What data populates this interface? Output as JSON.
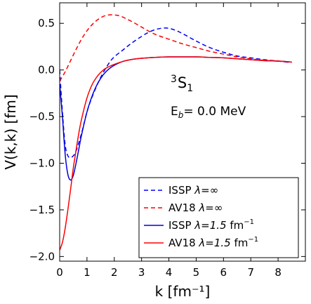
{
  "chart_data": {
    "type": "line",
    "xlabel": "k [fm⁻¹]",
    "ylabel": "V(k,k) [fm]",
    "xlim": [
      0,
      9
    ],
    "ylim": [
      -2.05,
      0.72
    ],
    "xticks": [
      0,
      1,
      2,
      3,
      4,
      5,
      6,
      7,
      8
    ],
    "yticks": [
      -2.0,
      -1.5,
      -1.0,
      -0.5,
      0.0,
      0.5
    ],
    "ytick_labels": [
      "−2.0",
      "−1.5",
      "−1.0",
      "−0.5",
      "0.0",
      "0.5"
    ],
    "grid": false,
    "legend_position": "lower-right",
    "annotations": {
      "channel": {
        "sup": "3",
        "main": "S",
        "sub": "1"
      },
      "binding": {
        "prefix": "E",
        "sub": "b",
        "value": "= 0.0 MeV"
      }
    },
    "series": [
      {
        "name": "ISSP λ=∞",
        "legend_main": "ISSP ",
        "legend_math": "λ=∞",
        "legend_unit": "",
        "legend_sup": "",
        "color": "#0000ff",
        "dashed": true,
        "x": [
          0,
          0.1,
          0.2,
          0.3,
          0.4,
          0.5,
          0.6,
          0.8,
          1.0,
          1.2,
          1.5,
          1.8,
          2.0,
          2.3,
          2.6,
          3.0,
          3.3,
          3.6,
          3.9,
          4.2,
          4.5,
          5.0,
          5.5,
          6.0,
          6.5,
          7.0,
          7.5,
          8.0,
          8.3,
          8.5
        ],
        "y": [
          0.0,
          -0.45,
          -0.8,
          -0.92,
          -0.94,
          -0.92,
          -0.87,
          -0.68,
          -0.45,
          -0.28,
          -0.08,
          0.07,
          0.14,
          0.21,
          0.28,
          0.36,
          0.41,
          0.44,
          0.45,
          0.43,
          0.39,
          0.31,
          0.24,
          0.19,
          0.15,
          0.13,
          0.11,
          0.095,
          0.085,
          0.08
        ]
      },
      {
        "name": "AV18 λ=∞",
        "legend_main": "AV18 ",
        "legend_math": "λ=∞",
        "legend_unit": "",
        "legend_sup": "",
        "color": "#ff0000",
        "dashed": true,
        "x": [
          0,
          0.2,
          0.4,
          0.6,
          0.8,
          1.0,
          1.2,
          1.4,
          1.6,
          1.8,
          2.0,
          2.2,
          2.4,
          2.7,
          3.0,
          3.3,
          3.6,
          4.0,
          4.5,
          5.0,
          5.5,
          6.0,
          6.5,
          7.0,
          7.5,
          8.0,
          8.3,
          8.5
        ],
        "y": [
          -0.12,
          -0.02,
          0.1,
          0.22,
          0.33,
          0.42,
          0.49,
          0.54,
          0.575,
          0.59,
          0.59,
          0.58,
          0.555,
          0.51,
          0.46,
          0.41,
          0.37,
          0.33,
          0.28,
          0.24,
          0.2,
          0.17,
          0.14,
          0.12,
          0.105,
          0.095,
          0.087,
          0.085
        ]
      },
      {
        "name": "ISSP λ=1.5 fm⁻¹",
        "legend_main": "ISSP ",
        "legend_math": "λ=1.5",
        "legend_unit": " fm",
        "legend_sup": "−1",
        "color": "#0000dd",
        "dashed": false,
        "x": [
          0,
          0.1,
          0.2,
          0.3,
          0.4,
          0.5,
          0.6,
          0.7,
          0.8,
          1.0,
          1.2,
          1.4,
          1.6,
          1.8,
          2.0,
          2.3,
          2.6,
          3.0,
          3.5,
          4.0,
          4.5,
          5.0,
          5.5,
          6.0,
          6.5,
          7.0,
          7.5,
          8.0,
          8.3,
          8.5
        ],
        "y": [
          -0.15,
          -0.5,
          -0.9,
          -1.12,
          -1.18,
          -1.13,
          -1.0,
          -0.85,
          -0.7,
          -0.45,
          -0.27,
          -0.14,
          -0.05,
          0.01,
          0.05,
          0.09,
          0.11,
          0.125,
          0.135,
          0.14,
          0.14,
          0.14,
          0.135,
          0.13,
          0.12,
          0.11,
          0.1,
          0.095,
          0.09,
          0.085
        ]
      },
      {
        "name": "AV18 λ=1.5 fm⁻¹",
        "legend_main": "AV18 ",
        "legend_math": "λ=1.5",
        "legend_unit": " fm",
        "legend_sup": "−1",
        "color": "#ff0000",
        "dashed": false,
        "x": [
          0,
          0.1,
          0.2,
          0.3,
          0.4,
          0.5,
          0.6,
          0.7,
          0.8,
          1.0,
          1.2,
          1.4,
          1.6,
          1.8,
          2.0,
          2.3,
          2.6,
          3.0,
          3.5,
          4.0,
          4.5,
          5.0,
          5.5,
          6.0,
          6.5,
          7.0,
          7.5,
          8.0,
          8.3,
          8.5
        ],
        "y": [
          -1.93,
          -1.85,
          -1.7,
          -1.5,
          -1.28,
          -1.05,
          -0.86,
          -0.68,
          -0.53,
          -0.3,
          -0.15,
          -0.06,
          0.0,
          0.035,
          0.06,
          0.09,
          0.11,
          0.125,
          0.135,
          0.14,
          0.14,
          0.14,
          0.135,
          0.13,
          0.12,
          0.11,
          0.1,
          0.095,
          0.09,
          0.085
        ]
      }
    ]
  }
}
